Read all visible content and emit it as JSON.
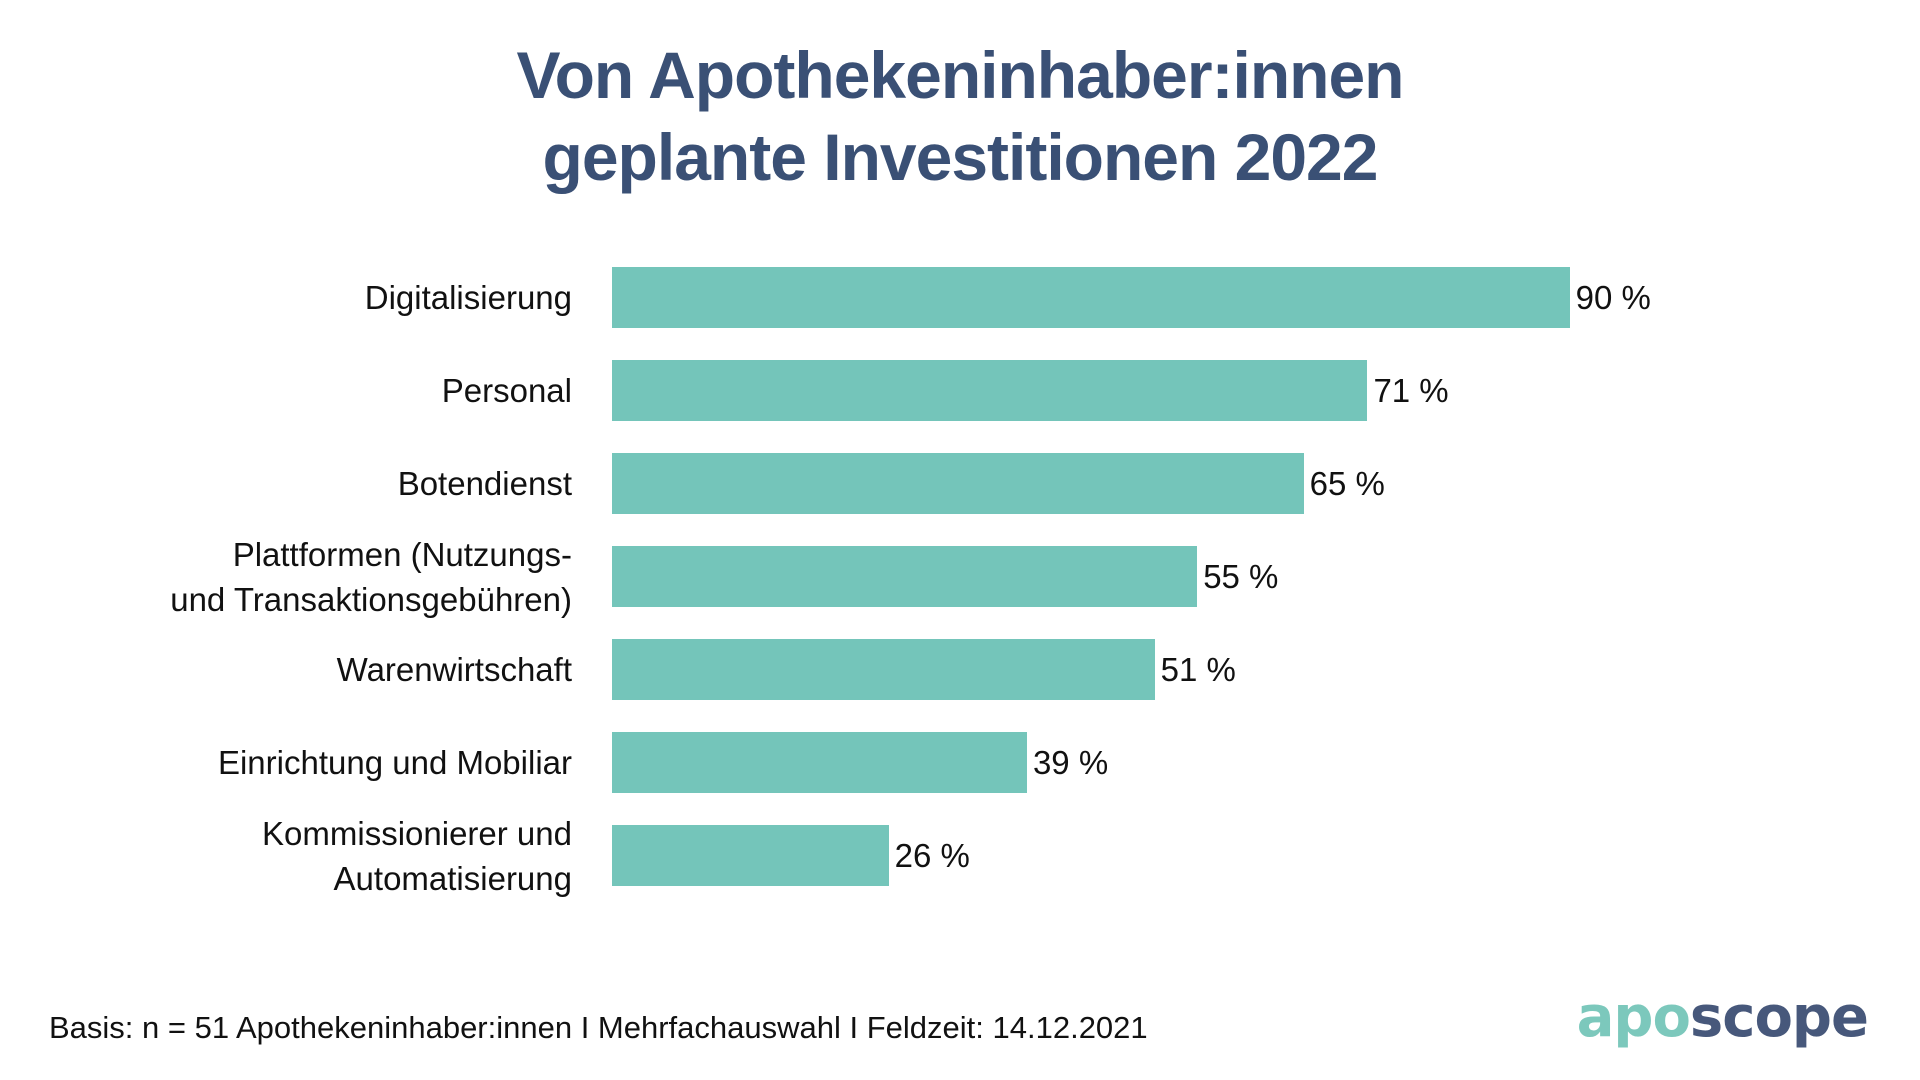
{
  "title": {
    "line1": "Von Apothekeninhaber:innen",
    "line2": "geplante Investitionen 2022"
  },
  "chart_data": {
    "type": "bar",
    "orientation": "horizontal",
    "title": "Von Apothekeninhaber:innen geplante Investitionen 2022",
    "categories": [
      "Digitalisierung",
      "Personal",
      "Botendienst",
      "Plattformen (Nutzungs- und Transaktionsgebühren)",
      "Warenwirtschaft",
      "Einrichtung und Mobiliar",
      "Kommissionierer und Automatisierung"
    ],
    "values": [
      90,
      71,
      65,
      55,
      51,
      39,
      26
    ],
    "unit": "%",
    "xlim": [
      0,
      100
    ],
    "grid": false,
    "legend": false,
    "bar_color": "#74c5ba",
    "rows": [
      {
        "label": "Digitalisierung",
        "value": 90,
        "display": "90 %"
      },
      {
        "label": "Personal",
        "value": 71,
        "display": "71 %"
      },
      {
        "label": "Botendienst",
        "value": 65,
        "display": "65 %"
      },
      {
        "label": "Plattformen (Nutzungs-\nund Transaktionsgebühren)",
        "value": 55,
        "display": "55 %"
      },
      {
        "label": "Warenwirtschaft",
        "value": 51,
        "display": "51 %"
      },
      {
        "label": "Einrichtung und Mobiliar",
        "value": 39,
        "display": "39 %"
      },
      {
        "label": "Kommissionierer und\nAutomatisierung",
        "value": 26,
        "display": "26 %"
      }
    ]
  },
  "footer": {
    "basis": "Basis: n = 51 Apothekeninhaber:innen I Mehrfachauswahl I Feldzeit: 14.12.2021"
  },
  "logo": {
    "part1": "apo",
    "part2": "scope"
  },
  "colors": {
    "bar": "#74c5ba",
    "title": "#3a5075",
    "text": "#111111",
    "logo_apo": "#7cc8bc",
    "logo_scope": "#47587b",
    "background": "#ffffff"
  }
}
